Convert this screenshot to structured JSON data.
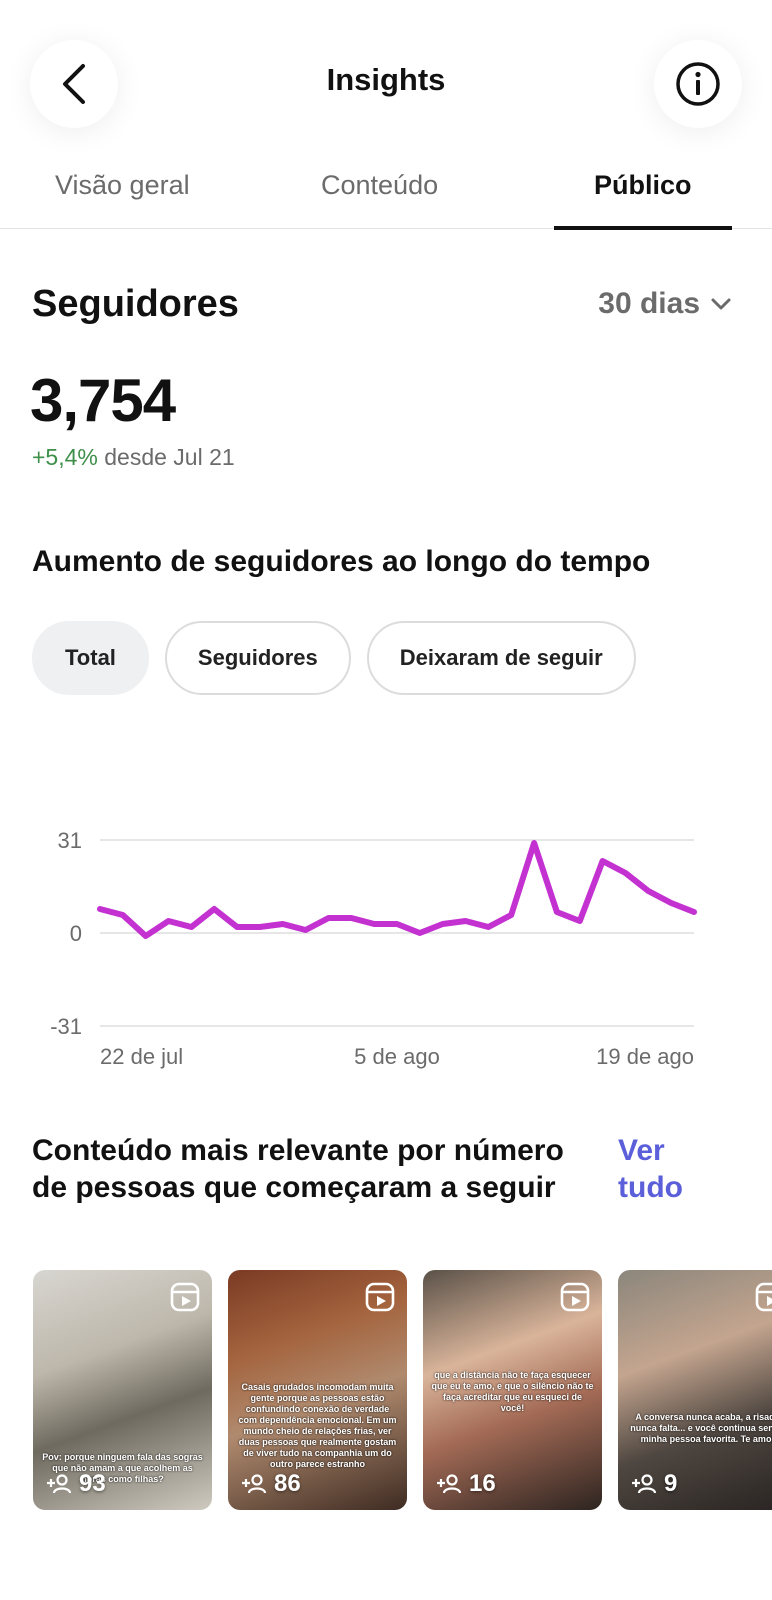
{
  "header": {
    "title": "Insights",
    "back_icon": "chevron-left-icon",
    "info_icon": "info-icon"
  },
  "tabs": [
    {
      "label": "Visão geral",
      "active": false
    },
    {
      "label": "Conteúdo",
      "active": false
    },
    {
      "label": "Público",
      "active": true
    }
  ],
  "followers": {
    "heading": "Seguidores",
    "range_label": "30 dias",
    "total": "3,754",
    "change": "+5,4%",
    "change_suffix": "desde Jul 21"
  },
  "growth": {
    "heading": "Aumento de seguidores ao longo do tempo",
    "filters": [
      {
        "label": "Total",
        "selected": true
      },
      {
        "label": "Seguidores",
        "selected": false
      },
      {
        "label": "Deixaram de seguir",
        "selected": false
      }
    ]
  },
  "chart_data": {
    "type": "line",
    "title": "",
    "xlabel": "",
    "ylabel": "",
    "ylim": [
      -31,
      31
    ],
    "y_ticks": [
      "31",
      "0",
      "-31"
    ],
    "x_tick_labels": [
      "22 de jul",
      "5 de ago",
      "19 de ago"
    ],
    "series": [
      {
        "color": "#c431d1",
        "values": [
          8,
          6,
          -1,
          4,
          2,
          8,
          2,
          2,
          3,
          1,
          5,
          5,
          3,
          3,
          0,
          3,
          4,
          2,
          6,
          30,
          7,
          4,
          24,
          20,
          14,
          10,
          7
        ]
      }
    ],
    "grid": true
  },
  "top_content": {
    "heading": "Conteúdo mais relevante por número de pessoas que começaram a seguir",
    "see_all": "Ver tudo",
    "items": [
      {
        "count": "93",
        "caption": "Pov: porque ninguem fala das sogras que não amam a que acolhem as noras como filhas?"
      },
      {
        "count": "86",
        "caption": "Casais grudados incomodam muita gente porque as pessoas estão confundindo conexão de verdade com dependência emocional. Em um mundo cheio de relações frias, ver duas pessoas que realmente gostam de viver tudo na companhia um do outro parece estranho"
      },
      {
        "count": "16",
        "caption": "que a distância não te faça esquecer que eu te amo, e que o silêncio não te faça acreditar que eu esqueci de você!"
      },
      {
        "count": "9",
        "caption": "A conversa nunca acaba, a risada nunca falta... e você continua sendo minha pessoa favorita. Te amo!"
      }
    ]
  }
}
